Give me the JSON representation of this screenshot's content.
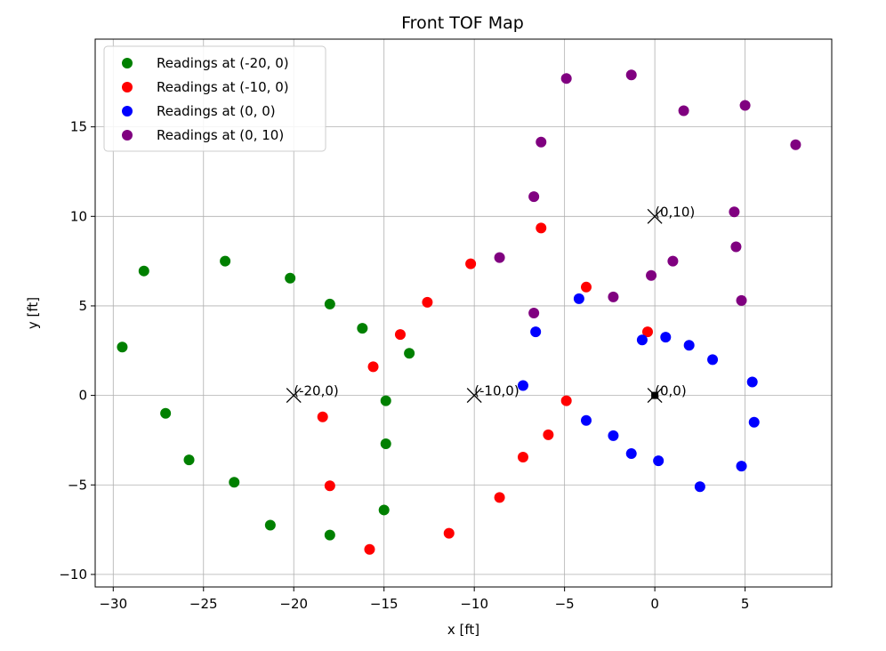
{
  "chart_data": {
    "type": "scatter",
    "title": "Front TOF Map",
    "xlabel": "x [ft]",
    "ylabel": "y [ft]",
    "xlim": [
      -31.0,
      9.8
    ],
    "ylim": [
      -10.7,
      19.9
    ],
    "xticks": [
      -30,
      -25,
      -20,
      -15,
      -10,
      -5,
      0,
      5
    ],
    "yticks": [
      -10,
      -5,
      0,
      5,
      10,
      15
    ],
    "xtick_labels": [
      "−30",
      "−25",
      "−20",
      "−15",
      "−10",
      "−5",
      "0",
      "5"
    ],
    "ytick_labels": [
      "−10",
      "−5",
      "0",
      "5",
      "10",
      "15"
    ],
    "grid": true,
    "legend_position": "top-left",
    "series": [
      {
        "name": "Readings at (-20, 0)",
        "color": "#008000",
        "points": [
          [
            -28.3,
            6.95
          ],
          [
            -29.5,
            2.7
          ],
          [
            -27.1,
            -1.0
          ],
          [
            -25.8,
            -3.6
          ],
          [
            -23.3,
            -4.85
          ],
          [
            -21.3,
            -7.25
          ],
          [
            -18.0,
            -7.8
          ],
          [
            -15.0,
            -6.4
          ],
          [
            -14.9,
            -2.7
          ],
          [
            -14.9,
            -0.3
          ],
          [
            -13.6,
            2.35
          ],
          [
            -16.2,
            3.75
          ],
          [
            -18.0,
            5.1
          ],
          [
            -20.2,
            6.55
          ],
          [
            -23.8,
            7.5
          ]
        ]
      },
      {
        "name": "Readings at (-10, 0)",
        "color": "#ff0000",
        "points": [
          [
            -18.4,
            -1.2
          ],
          [
            -18.0,
            -5.05
          ],
          [
            -15.8,
            -8.6
          ],
          [
            -11.4,
            -7.7
          ],
          [
            -8.6,
            -5.7
          ],
          [
            -7.3,
            -3.45
          ],
          [
            -5.9,
            -2.2
          ],
          [
            -4.9,
            -0.3
          ],
          [
            -3.8,
            6.05
          ],
          [
            -6.3,
            9.35
          ],
          [
            -10.2,
            7.35
          ],
          [
            -12.6,
            5.2
          ],
          [
            -14.1,
            3.4
          ],
          [
            -15.6,
            1.6
          ],
          [
            -0.4,
            3.55
          ]
        ]
      },
      {
        "name": "Readings at (0, 0)",
        "color": "#0000ff",
        "points": [
          [
            -7.3,
            0.55
          ],
          [
            -6.6,
            3.55
          ],
          [
            -4.2,
            5.4
          ],
          [
            -3.8,
            -1.4
          ],
          [
            -2.3,
            -2.25
          ],
          [
            -1.3,
            -3.25
          ],
          [
            0.2,
            -3.65
          ],
          [
            2.5,
            -5.1
          ],
          [
            4.8,
            -3.95
          ],
          [
            5.5,
            -1.5
          ],
          [
            5.4,
            0.75
          ],
          [
            3.2,
            2.0
          ],
          [
            1.9,
            2.8
          ],
          [
            0.6,
            3.25
          ],
          [
            -0.7,
            3.1
          ]
        ]
      },
      {
        "name": "Readings at (0, 10)",
        "color": "#800080",
        "points": [
          [
            -4.9,
            17.7
          ],
          [
            -1.3,
            17.9
          ],
          [
            1.6,
            15.9
          ],
          [
            5.0,
            16.2
          ],
          [
            7.8,
            14.0
          ],
          [
            4.4,
            10.25
          ],
          [
            4.5,
            8.3
          ],
          [
            4.8,
            5.3
          ],
          [
            1.0,
            7.5
          ],
          [
            -0.2,
            6.7
          ],
          [
            -2.3,
            5.5
          ],
          [
            -6.7,
            4.6
          ],
          [
            -8.6,
            7.7
          ],
          [
            -6.7,
            11.1
          ],
          [
            -6.3,
            14.15
          ]
        ]
      }
    ],
    "markers": [
      {
        "x": -20,
        "y": 0,
        "label": "(-20,0)",
        "marker": "x"
      },
      {
        "x": -10,
        "y": 0,
        "label": "(-10,0)",
        "marker": "x"
      },
      {
        "x": 0,
        "y": 10,
        "label": "(0,10)",
        "marker": "x"
      },
      {
        "x": 0,
        "y": 0,
        "label": "(0,0)",
        "marker": "x-square"
      }
    ]
  }
}
